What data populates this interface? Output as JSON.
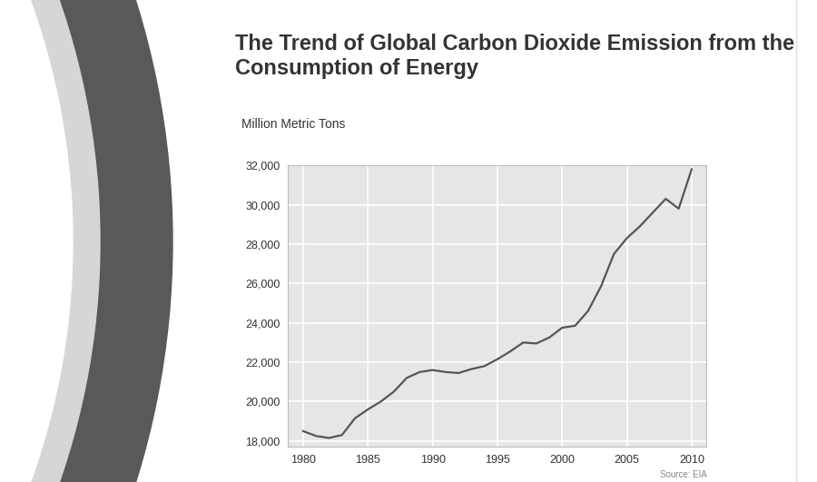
{
  "chart_data": {
    "type": "line",
    "title": "The Trend of Global Carbon Dioxide Emission from the Consumption of Energy",
    "y_label": "Million Metric Tons",
    "source": "Source: EIA",
    "x": [
      1980,
      1981,
      1982,
      1983,
      1984,
      1985,
      1986,
      1987,
      1988,
      1989,
      1990,
      1991,
      1992,
      1993,
      1994,
      1995,
      1996,
      1997,
      1998,
      1999,
      2000,
      2001,
      2002,
      2003,
      2004,
      2005,
      2006,
      2007,
      2008,
      2009,
      2010
    ],
    "values": [
      18500,
      18250,
      18150,
      18300,
      19150,
      19600,
      20000,
      20500,
      21200,
      21500,
      21600,
      21500,
      21450,
      21650,
      21800,
      22150,
      22550,
      23000,
      22950,
      23250,
      23750,
      23850,
      24600,
      25850,
      27500,
      28300,
      28900,
      29600,
      30300,
      29800,
      31800
    ],
    "color": "#555555",
    "xlim": [
      1978.8,
      2011.1
    ],
    "xticks": [
      1980,
      1985,
      1990,
      1995,
      2000,
      2005,
      2010
    ],
    "ylim": [
      17700,
      32000
    ],
    "yticks": [
      {
        "value": 18000,
        "label": "18,000"
      },
      {
        "value": 20000,
        "label": "20,000"
      },
      {
        "value": 22000,
        "label": "22,000"
      },
      {
        "value": 24000,
        "label": "24,000"
      },
      {
        "value": 26000,
        "label": "26,000"
      },
      {
        "value": 28000,
        "label": "28,000"
      },
      {
        "value": 30000,
        "label": "30,000"
      },
      {
        "value": 32000,
        "label": "32,000"
      }
    ],
    "grid": true
  }
}
